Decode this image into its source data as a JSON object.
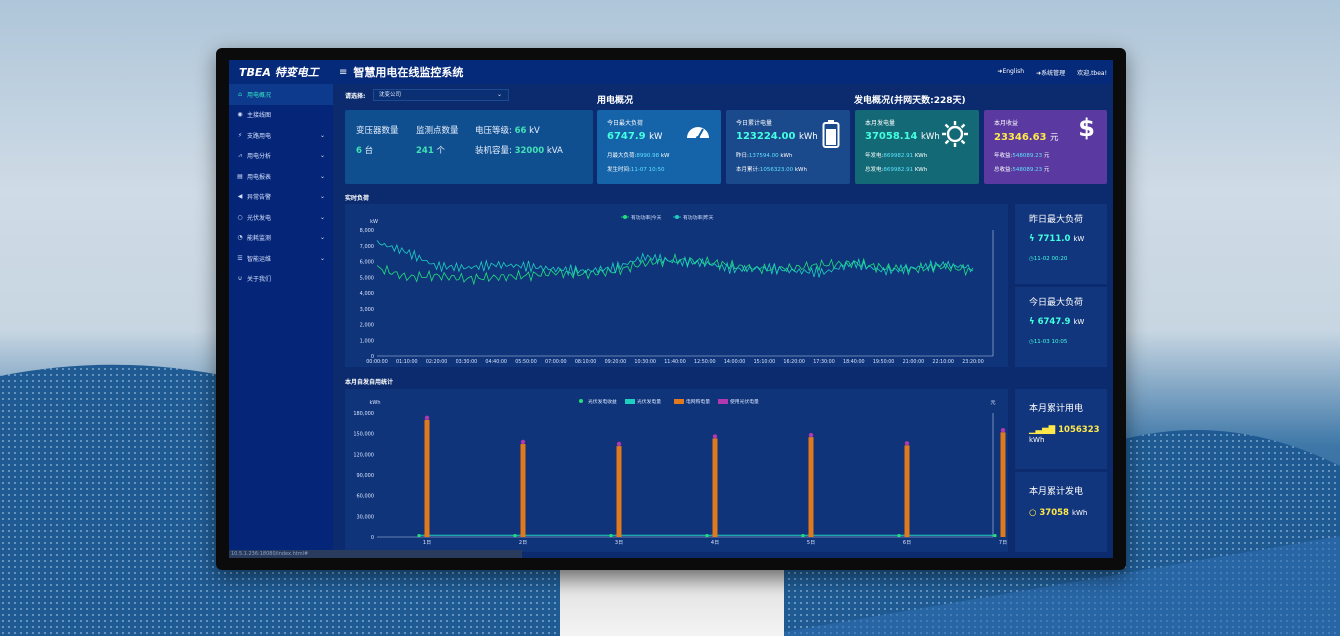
{
  "header": {
    "logo": "TBEA 特变电工",
    "title": "智慧用电在线监控系统",
    "links": [
      "English",
      "系统管理",
      "欢迎,tbea!"
    ]
  },
  "sidebar": {
    "items": [
      {
        "label": "用电概况",
        "icon": "home-icon",
        "expandable": false,
        "active": true
      },
      {
        "label": "主接线图",
        "icon": "eye-icon",
        "expandable": false
      },
      {
        "label": "支路用电",
        "icon": "plug-icon",
        "expandable": true
      },
      {
        "label": "用电分析",
        "icon": "line-chart-icon",
        "expandable": true
      },
      {
        "label": "用电报表",
        "icon": "file-icon",
        "expandable": true
      },
      {
        "label": "异常告警",
        "icon": "bullhorn-icon",
        "expandable": true
      },
      {
        "label": "光伏发电",
        "icon": "circle-icon",
        "expandable": true
      },
      {
        "label": "能耗监测",
        "icon": "dashboard-icon",
        "expandable": true
      },
      {
        "label": "智能运维",
        "icon": "list-icon",
        "expandable": true
      },
      {
        "label": "关于我们",
        "icon": "magnet-icon",
        "expandable": false
      }
    ]
  },
  "selector": {
    "label": "请选择:",
    "value": "沈变公司"
  },
  "sections": {
    "usage": "用电概况",
    "generation": "发电概况(并网天数:228天)",
    "realtime": "实时负荷",
    "monthly": "本月自发自用统计"
  },
  "stats": {
    "transformer_label": "变压器数量",
    "transformer_value": "6",
    "transformer_unit": "台",
    "points_label": "监测点数量",
    "points_value": "241",
    "points_unit": "个",
    "voltage_label": "电压等级:",
    "voltage_value": "66",
    "voltage_unit": "kV",
    "capacity_label": "装机容量:",
    "capacity_value": "32000",
    "capacity_unit": "kVA"
  },
  "cards": [
    {
      "title": "今日最大负荷",
      "value": "6747.9",
      "unit": "kW",
      "sub1_label": "月最大负荷:",
      "sub1_value": "8990.98",
      "sub1_unit": "kW",
      "sub2_label": "发生时间:",
      "sub2_value": "11-07 10:50",
      "sub2_unit": "",
      "color": "#1563a8",
      "icon": "gauge-icon"
    },
    {
      "title": "今日累计电量",
      "value": "123224.00",
      "unit": "kWh",
      "sub1_label": "昨日:",
      "sub1_value": "137594.00",
      "sub1_unit": "kWh",
      "sub2_label": "本月累计:",
      "sub2_value": "1056323.00",
      "sub2_unit": "kWh",
      "color": "#1b4a8c",
      "icon": "battery-icon"
    },
    {
      "title": "本月发电量",
      "value": "37058.14",
      "unit": "kWh",
      "sub1_label": "年发电:",
      "sub1_value": "869982.91",
      "sub1_unit": "KWh",
      "sub2_label": "总发电:",
      "sub2_value": "869982.91",
      "sub2_unit": "KWh",
      "color": "#136a76",
      "icon": "sun-icon"
    },
    {
      "title": "本月收益",
      "value": "23346.63",
      "unit": "元",
      "sub1_label": "年收益:",
      "sub1_value": "548089.23",
      "sub1_unit": "元",
      "sub2_label": "总收益:",
      "sub2_value": "548089.23",
      "sub2_unit": "元",
      "color": "#5a3aa0",
      "icon": "dollar-icon"
    }
  ],
  "side_cards": {
    "yesterday_title": "昨日最大负荷",
    "yesterday_value": "7711.0",
    "yesterday_unit": "kW",
    "yesterday_time": "11-02 00:20",
    "today_title": "今日最大负荷",
    "today_value": "6747.9",
    "today_unit": "kW",
    "today_time": "11-03 10:05",
    "month_use_title": "本月累计用电",
    "month_use_value": "1056323",
    "month_use_unit": "kWh",
    "month_gen_title": "本月累计发电",
    "month_gen_value": "37058",
    "month_gen_unit": "kWh"
  },
  "status_url": "10.5.1.236:18080/index.html#",
  "chart_data": [
    {
      "type": "line",
      "ylabel": "kW",
      "ylim": [
        0,
        8000
      ],
      "yticks": [
        "0",
        "1,000",
        "2,000",
        "3,000",
        "4,000",
        "5,000",
        "6,000",
        "7,000",
        "8,000"
      ],
      "x": [
        "00:00:00",
        "01:10:00",
        "02:20:00",
        "03:30:00",
        "04:40:00",
        "05:50:00",
        "07:00:00",
        "08:10:00",
        "09:20:00",
        "10:30:00",
        "11:40:00",
        "12:50:00",
        "14:00:00",
        "15:10:00",
        "16:20:00",
        "17:30:00",
        "18:40:00",
        "19:50:00",
        "21:00:00",
        "22:10:00",
        "23:20:00"
      ],
      "series": [
        {
          "name": "有功功率|今天",
          "color": "#20e07a",
          "values": [
            5600,
            5000,
            5100,
            4900,
            5000,
            5100,
            5300,
            5200,
            5400,
            5900,
            6100,
            6000,
            5700,
            5500,
            5600,
            5800,
            5900,
            5600,
            5500,
            5700,
            5400
          ]
        },
        {
          "name": "有功功率|昨天",
          "color": "#1ecfc0",
          "values": [
            7200,
            6600,
            5700,
            5600,
            5800,
            5700,
            5500,
            5400,
            5600,
            6300,
            6000,
            5900,
            5500,
            5600,
            5400,
            5300,
            5900,
            5400,
            5600,
            5800,
            5600
          ]
        }
      ],
      "legend": "top-center",
      "grid": false
    },
    {
      "type": "bar",
      "ylabel": "kWh",
      "y2label": "元",
      "ylim": [
        0,
        180000
      ],
      "yticks": [
        "0",
        "30,000",
        "60,000",
        "90,000",
        "120,000",
        "150,000",
        "180,000"
      ],
      "categories": [
        "1日",
        "2日",
        "3日",
        "4日",
        "5日",
        "6日",
        "7日"
      ],
      "series": [
        {
          "name": "光伏发电收益",
          "color": "#20e07a",
          "values": [
            2000,
            2000,
            2000,
            2000,
            2000,
            2000,
            2000
          ]
        },
        {
          "name": "光伏发电量",
          "color": "#1ecfc0",
          "values": [
            2500,
            2500,
            2500,
            2500,
            2500,
            2500,
            2500
          ]
        },
        {
          "name": "电网购电量",
          "color": "#e07a1c",
          "values": [
            170000,
            135000,
            132000,
            143000,
            145000,
            133000,
            152000
          ]
        },
        {
          "name": "使用光伏电量",
          "color": "#b238b0",
          "values": [
            173000,
            138000,
            135000,
            146000,
            148000,
            136000,
            155000
          ]
        }
      ],
      "legend": "top-center"
    }
  ]
}
